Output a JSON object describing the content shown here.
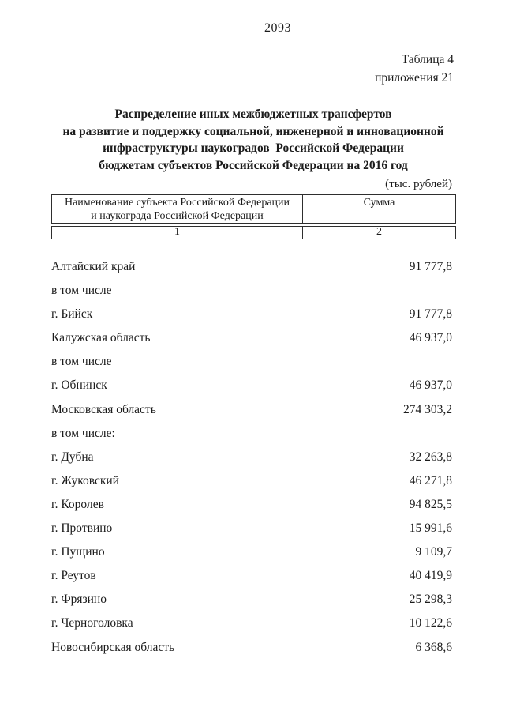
{
  "page": {
    "number": "2093"
  },
  "reference": {
    "line1": "Таблица 4",
    "line2": "приложения 21"
  },
  "title": {
    "line1": "Распределение иных межбюджетных трансфертов",
    "line2": "на развитие и поддержку социальной, инженерной и инновационной",
    "line3": "инфраструктуры наукоградов  Российской Федерации",
    "line4": "бюджетам субъектов Российской Федерации на 2016 год"
  },
  "units": "(тыс. рублей)",
  "table": {
    "header": {
      "col1_line1": "Наименование субъекта Российской Федерации",
      "col1_line2": "и наукограда Российской Федерации",
      "col2": "Сумма",
      "col1_number": "1",
      "col2_number": "2"
    },
    "rows": [
      {
        "name": "Алтайский край",
        "value": "91 777,8"
      },
      {
        "name": "в том числе",
        "value": ""
      },
      {
        "name": "г. Бийск",
        "value": "91 777,8"
      },
      {
        "name": "Калужская область",
        "value": "46 937,0"
      },
      {
        "name": "в том числе",
        "value": ""
      },
      {
        "name": "г. Обнинск",
        "value": "46 937,0"
      },
      {
        "name": "Московская область",
        "value": "274 303,2"
      },
      {
        "name": "в том числе:",
        "value": ""
      },
      {
        "name": "г. Дубна",
        "value": "32 263,8"
      },
      {
        "name": "г. Жуковский",
        "value": "46 271,8"
      },
      {
        "name": "г. Королев",
        "value": "94 825,5"
      },
      {
        "name": "г. Протвино",
        "value": "15 991,6"
      },
      {
        "name": "г. Пущино",
        "value": "9 109,7"
      },
      {
        "name": "г. Реутов",
        "value": "40 419,9"
      },
      {
        "name": "г. Фрязино",
        "value": "25 298,3"
      },
      {
        "name": "г. Черноголовка",
        "value": "10 122,6"
      },
      {
        "name": "Новосибирская область",
        "value": "6 368,6"
      }
    ]
  }
}
